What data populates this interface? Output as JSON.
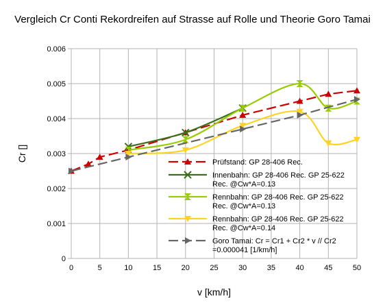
{
  "chart_data": {
    "type": "line",
    "title": "Vergleich Cr Conti Rekordreifen auf Strasse auf Rolle und Theorie Goro Tamai",
    "xlabel": "v [km/h]",
    "ylabel": "Cr []",
    "xlim": [
      0,
      50
    ],
    "ylim": [
      0,
      0.006
    ],
    "xticks": [
      "0",
      "5",
      "10",
      "15",
      "20",
      "25",
      "30",
      "35",
      "40",
      "45",
      "50"
    ],
    "yticks": [
      "0",
      "0.001",
      "0.002",
      "0.003",
      "0.004",
      "0.005",
      "0.006"
    ],
    "grid": true,
    "legend_position": "inside-bottom-right",
    "series": [
      {
        "name_lines": [
          "Prüfstand: GP 28-406 Rec."
        ],
        "color": "#cc0000",
        "dash": "dashed",
        "marker": "triangle",
        "smooth": false,
        "x": [
          0,
          3,
          5,
          10,
          20,
          30,
          40,
          45,
          50
        ],
        "y": [
          0.0025,
          0.0027,
          0.0029,
          0.0031,
          0.0036,
          0.0041,
          0.0045,
          0.0047,
          0.0048
        ]
      },
      {
        "name_lines": [
          "Innenbahn: GP 28-406 Rec. GP 25-622",
          "Rec. @Cw*A=0.13"
        ],
        "color": "#3c6e1a",
        "dash": "solid",
        "marker": "x",
        "smooth": true,
        "x": [
          10,
          20,
          30
        ],
        "y": [
          0.0032,
          0.0036,
          0.0043
        ]
      },
      {
        "name_lines": [
          "Rennbahn: GP 28-406 Rec. GP 25-622",
          "Rec. @Cw*A=0.13"
        ],
        "color": "#99cc00",
        "dash": "solid",
        "marker": "hourglass",
        "smooth": true,
        "x": [
          10,
          20,
          30,
          40,
          45,
          50
        ],
        "y": [
          0.0031,
          0.0034,
          0.0043,
          0.005,
          0.0043,
          0.0045
        ]
      },
      {
        "name_lines": [
          "Rennbahn: GP 28-406 Rec. GP 25-622",
          "Rec. @Cw*A=0.14"
        ],
        "color": "#ffd320",
        "dash": "solid",
        "marker": "triangle-down",
        "smooth": true,
        "x": [
          10,
          20,
          30,
          40,
          45,
          50
        ],
        "y": [
          0.003,
          0.0031,
          0.0038,
          0.0042,
          0.0033,
          0.0034
        ]
      },
      {
        "name_lines": [
          "Goro Tamai: Cr = Cr1 + Cr2 * v  // Cr2",
          "=0.000041 [1/km/h]"
        ],
        "color": "#666666",
        "dash": "dashed",
        "marker": "triangle-right",
        "smooth": false,
        "x": [
          0,
          10,
          30,
          40,
          50
        ],
        "y": [
          0.0025,
          0.0029,
          0.0037,
          0.0041,
          0.00455
        ]
      }
    ]
  }
}
